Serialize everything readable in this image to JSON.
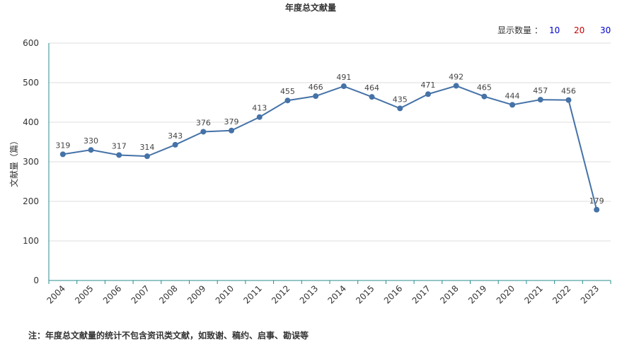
{
  "chart_data": {
    "type": "line",
    "title": "年度总文献量",
    "xlabel": "",
    "ylabel": "文献量（篇）",
    "categories": [
      "2004",
      "2005",
      "2006",
      "2007",
      "2008",
      "2009",
      "2010",
      "2011",
      "2012",
      "2013",
      "2014",
      "2015",
      "2016",
      "2017",
      "2018",
      "2019",
      "2020",
      "2021",
      "2022",
      "2023"
    ],
    "series": [
      {
        "values": [
          319,
          330,
          317,
          314,
          343,
          376,
          379,
          413,
          455,
          466,
          491,
          464,
          435,
          471,
          492,
          465,
          444,
          457,
          456,
          179
        ]
      }
    ],
    "ylim": [
      0,
      600
    ],
    "yticks": [
      0,
      100,
      200,
      300,
      400,
      500,
      600
    ],
    "grid": true,
    "color": "#4572a7"
  },
  "display_count": {
    "label": "显示数量 ：",
    "options": [
      {
        "text": "10",
        "color": "#0000cc"
      },
      {
        "text": "20",
        "color": "#cc0000"
      },
      {
        "text": "30",
        "color": "#0000cc"
      }
    ]
  },
  "footnote": "注：年度总文献量的统计不包含资讯类文献，如致谢、稿约、启事、勘误等"
}
